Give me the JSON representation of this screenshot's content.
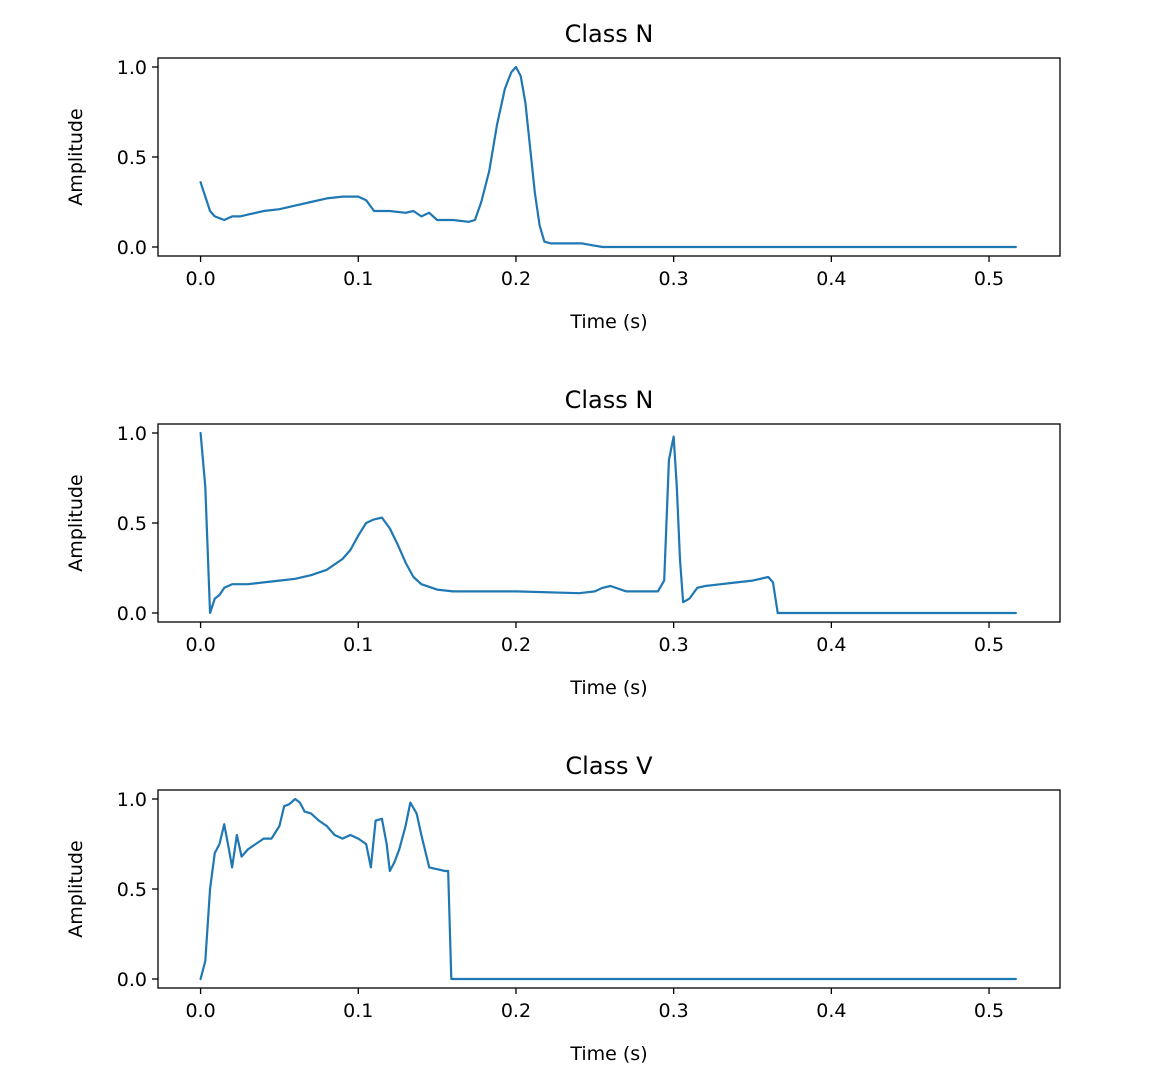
{
  "colors": {
    "series": "#1f77b4"
  },
  "chart_data": [
    {
      "type": "line",
      "title": "Class N",
      "xlabel": "Time (s)",
      "ylabel": "Amplitude",
      "xlim": [
        -0.027,
        0.545
      ],
      "ylim": [
        -0.05,
        1.05
      ],
      "xticks": [
        "0.0",
        "0.1",
        "0.2",
        "0.3",
        "0.4",
        "0.5"
      ],
      "yticks": [
        "0.0",
        "0.5",
        "1.0"
      ],
      "grid": false,
      "series": [
        {
          "x": [
            0.0,
            0.003,
            0.006,
            0.009,
            0.012,
            0.015,
            0.02,
            0.025,
            0.03,
            0.035,
            0.04,
            0.05,
            0.06,
            0.07,
            0.08,
            0.09,
            0.1,
            0.105,
            0.11,
            0.12,
            0.13,
            0.135,
            0.14,
            0.145,
            0.15,
            0.16,
            0.17,
            0.174,
            0.178,
            0.183,
            0.188,
            0.193,
            0.197,
            0.2,
            0.203,
            0.206,
            0.209,
            0.212,
            0.215,
            0.218,
            0.222,
            0.228,
            0.235,
            0.242,
            0.248,
            0.255,
            0.26,
            0.3,
            0.4,
            0.517
          ],
          "y": [
            0.36,
            0.28,
            0.2,
            0.17,
            0.16,
            0.15,
            0.17,
            0.17,
            0.18,
            0.19,
            0.2,
            0.21,
            0.23,
            0.25,
            0.27,
            0.28,
            0.28,
            0.26,
            0.2,
            0.2,
            0.19,
            0.2,
            0.17,
            0.19,
            0.15,
            0.15,
            0.14,
            0.15,
            0.25,
            0.42,
            0.68,
            0.88,
            0.97,
            1.0,
            0.95,
            0.8,
            0.55,
            0.3,
            0.12,
            0.03,
            0.02,
            0.02,
            0.02,
            0.02,
            0.01,
            0.0,
            0.0,
            0.0,
            0.0,
            0.0
          ]
        }
      ]
    },
    {
      "type": "line",
      "title": "Class N",
      "xlabel": "Time (s)",
      "ylabel": "Amplitude",
      "xlim": [
        -0.027,
        0.545
      ],
      "ylim": [
        -0.05,
        1.05
      ],
      "xticks": [
        "0.0",
        "0.1",
        "0.2",
        "0.3",
        "0.4",
        "0.5"
      ],
      "yticks": [
        "0.0",
        "0.5",
        "1.0"
      ],
      "grid": false,
      "series": [
        {
          "x": [
            0.0,
            0.003,
            0.006,
            0.009,
            0.012,
            0.015,
            0.02,
            0.03,
            0.04,
            0.05,
            0.06,
            0.07,
            0.08,
            0.09,
            0.095,
            0.1,
            0.105,
            0.11,
            0.115,
            0.12,
            0.125,
            0.13,
            0.135,
            0.14,
            0.15,
            0.16,
            0.2,
            0.24,
            0.25,
            0.255,
            0.26,
            0.27,
            0.28,
            0.29,
            0.294,
            0.297,
            0.3,
            0.302,
            0.304,
            0.306,
            0.308,
            0.31,
            0.315,
            0.32,
            0.33,
            0.34,
            0.35,
            0.36,
            0.363,
            0.366,
            0.4,
            0.5,
            0.517
          ],
          "y": [
            1.0,
            0.7,
            0.0,
            0.08,
            0.1,
            0.14,
            0.16,
            0.16,
            0.17,
            0.18,
            0.19,
            0.21,
            0.24,
            0.3,
            0.35,
            0.43,
            0.5,
            0.52,
            0.53,
            0.47,
            0.38,
            0.28,
            0.2,
            0.16,
            0.13,
            0.12,
            0.12,
            0.11,
            0.12,
            0.14,
            0.15,
            0.12,
            0.12,
            0.12,
            0.18,
            0.85,
            0.98,
            0.7,
            0.3,
            0.06,
            0.07,
            0.08,
            0.14,
            0.15,
            0.16,
            0.17,
            0.18,
            0.2,
            0.17,
            0.0,
            0.0,
            0.0,
            0.0
          ]
        }
      ]
    },
    {
      "type": "line",
      "title": "Class V",
      "xlabel": "Time (s)",
      "ylabel": "Amplitude",
      "xlim": [
        -0.027,
        0.545
      ],
      "ylim": [
        -0.05,
        1.05
      ],
      "xticks": [
        "0.0",
        "0.1",
        "0.2",
        "0.3",
        "0.4",
        "0.5"
      ],
      "yticks": [
        "0.0",
        "0.5",
        "1.0"
      ],
      "grid": false,
      "series": [
        {
          "x": [
            0.0,
            0.003,
            0.006,
            0.009,
            0.012,
            0.015,
            0.018,
            0.02,
            0.023,
            0.026,
            0.03,
            0.035,
            0.04,
            0.045,
            0.05,
            0.053,
            0.056,
            0.06,
            0.063,
            0.066,
            0.07,
            0.075,
            0.08,
            0.085,
            0.09,
            0.095,
            0.1,
            0.105,
            0.108,
            0.111,
            0.115,
            0.118,
            0.12,
            0.123,
            0.126,
            0.13,
            0.133,
            0.137,
            0.14,
            0.145,
            0.15,
            0.155,
            0.157,
            0.159,
            0.2,
            0.3,
            0.4,
            0.5,
            0.517
          ],
          "y": [
            0.0,
            0.1,
            0.5,
            0.7,
            0.75,
            0.86,
            0.72,
            0.62,
            0.8,
            0.68,
            0.72,
            0.75,
            0.78,
            0.78,
            0.85,
            0.96,
            0.97,
            1.0,
            0.98,
            0.93,
            0.92,
            0.88,
            0.85,
            0.8,
            0.78,
            0.8,
            0.78,
            0.75,
            0.62,
            0.88,
            0.89,
            0.75,
            0.6,
            0.65,
            0.72,
            0.85,
            0.98,
            0.92,
            0.8,
            0.62,
            0.61,
            0.6,
            0.6,
            0.0,
            0.0,
            0.0,
            0.0,
            0.0,
            0.0
          ]
        }
      ]
    }
  ]
}
